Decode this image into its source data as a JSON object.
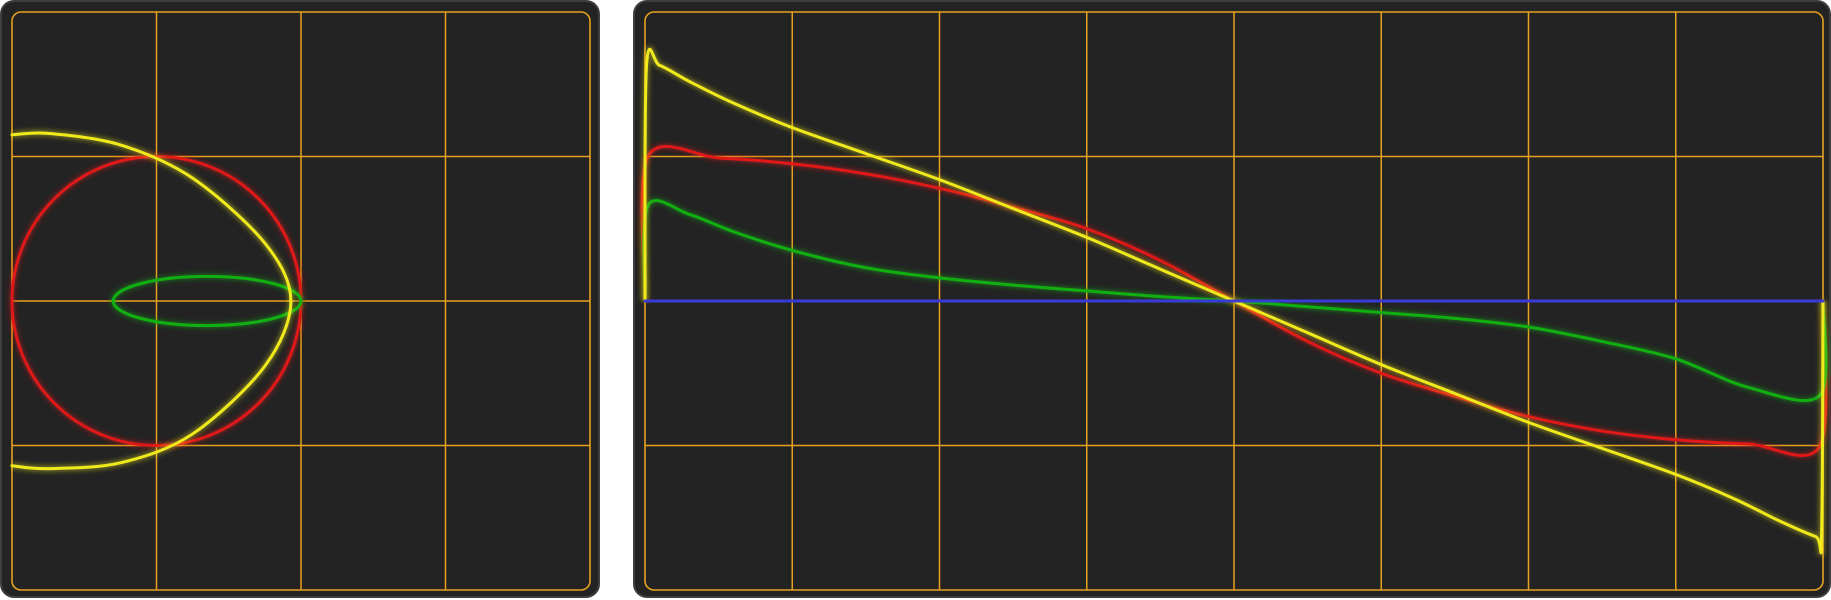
{
  "colors": {
    "background": "#232323",
    "bezel": "#3e3e3e",
    "grid": "#e6a21e",
    "red": "#e01818",
    "green": "#10b010",
    "yellow": "#f0ea1c",
    "blue": "#3a3ad8"
  },
  "chart_data": [
    {
      "type": "line",
      "mode": "xy-phase-plot",
      "title": "",
      "grid": {
        "divisions_x": 4,
        "divisions_y": 4
      },
      "xlim": [
        -1,
        3
      ],
      "ylim": [
        -2,
        2
      ],
      "series": [
        {
          "name": "red",
          "color": "red",
          "shape": "circle",
          "center": [
            0,
            0
          ],
          "radius_x": 1,
          "radius_y": 1
        },
        {
          "name": "green",
          "color": "green",
          "shape": "ellipse",
          "center": [
            0.35,
            0
          ],
          "radius_x": 0.65,
          "radius_y": 0.17
        },
        {
          "name": "yellow",
          "color": "yellow",
          "shape": "arc",
          "points": [
            [
              -1,
              1.15
            ],
            [
              -0.75,
              1.16
            ],
            [
              -0.25,
              1.08
            ],
            [
              0.25,
              0.85
            ],
            [
              0.75,
              0.4
            ],
            [
              0.93,
              0
            ],
            [
              0.75,
              -0.45
            ],
            [
              0.25,
              -0.92
            ],
            [
              -0.25,
              -1.12
            ],
            [
              -0.75,
              -1.16
            ],
            [
              -1,
              -1.14
            ]
          ]
        }
      ]
    },
    {
      "type": "line",
      "mode": "time-domain",
      "title": "",
      "grid": {
        "divisions_x": 8,
        "divisions_y": 4
      },
      "xlim": [
        0,
        8
      ],
      "ylim": [
        -2,
        2
      ],
      "series": [
        {
          "name": "red",
          "color": "red",
          "x": [
            0,
            0.02,
            0.5,
            1,
            1.5,
            2,
            2.5,
            3,
            3.5,
            4,
            4.5,
            5,
            5.5,
            6,
            6.5,
            7,
            7.5,
            7.98,
            8
          ],
          "y": [
            0,
            1,
            0.99,
            0.95,
            0.88,
            0.78,
            0.65,
            0.5,
            0.28,
            0,
            -0.28,
            -0.5,
            -0.66,
            -0.8,
            -0.9,
            -0.96,
            -0.99,
            -1,
            0
          ]
        },
        {
          "name": "green",
          "color": "green",
          "x": [
            0,
            0.02,
            0.3,
            0.6,
            1,
            1.5,
            2,
            2.5,
            3,
            3.5,
            4,
            4.5,
            5,
            5.5,
            6,
            6.5,
            7,
            7.5,
            7.98,
            8
          ],
          "y": [
            0,
            0.66,
            0.6,
            0.48,
            0.35,
            0.23,
            0.16,
            0.11,
            0.07,
            0.03,
            0,
            -0.04,
            -0.08,
            -0.12,
            -0.18,
            -0.28,
            -0.4,
            -0.6,
            -0.65,
            0
          ]
        },
        {
          "name": "yellow",
          "color": "yellow",
          "x": [
            0,
            0.01,
            0.1,
            0.3,
            0.6,
            1,
            1.5,
            2,
            2.5,
            3,
            3.5,
            4,
            4.5,
            5,
            5.5,
            6,
            6.5,
            7,
            7.4,
            7.7,
            7.95,
            7.99,
            8
          ],
          "y": [
            0,
            1.62,
            1.63,
            1.52,
            1.37,
            1.2,
            1.02,
            0.84,
            0.64,
            0.44,
            0.22,
            0,
            -0.22,
            -0.44,
            -0.64,
            -0.84,
            -1.02,
            -1.2,
            -1.37,
            -1.52,
            -1.63,
            -1.62,
            0
          ]
        },
        {
          "name": "blue",
          "color": "blue",
          "x": [
            0,
            8
          ],
          "y": [
            0,
            0
          ]
        }
      ]
    }
  ]
}
